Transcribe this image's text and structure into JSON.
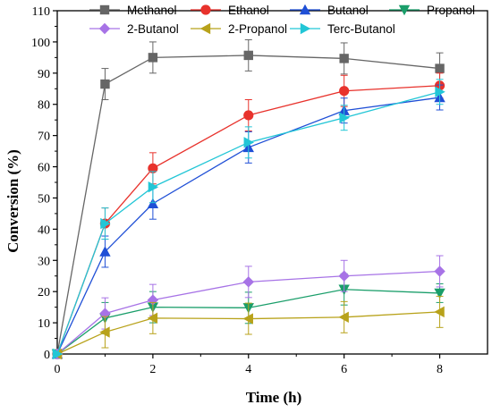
{
  "chart_data": {
    "type": "line",
    "xlabel": "Time (h)",
    "ylabel": "Conversion (%)",
    "xlim": [
      0,
      9
    ],
    "ylim": [
      0,
      110
    ],
    "xticks": [
      0,
      2,
      4,
      6,
      8
    ],
    "yticks": [
      0,
      10,
      20,
      30,
      40,
      50,
      60,
      70,
      80,
      90,
      100,
      110
    ],
    "grid": false,
    "legend_position": "top",
    "x": [
      0,
      1,
      2,
      4,
      6,
      8
    ],
    "series": [
      {
        "name": "Methanol",
        "marker": "square",
        "color": "#666666",
        "values": [
          0,
          86.5,
          95,
          95.7,
          94.7,
          91.5
        ],
        "errors": [
          0,
          5,
          5,
          5,
          5,
          5
        ]
      },
      {
        "name": "Ethanol",
        "marker": "circle",
        "color": "#e8322c",
        "values": [
          0,
          41.8,
          59.5,
          76.5,
          84.3,
          86
        ],
        "errors": [
          0,
          5,
          5,
          5,
          5,
          4
        ]
      },
      {
        "name": "Butanol",
        "marker": "triangle-up",
        "color": "#1f4fd6",
        "values": [
          0,
          32.8,
          48.2,
          66.2,
          78,
          82.2
        ],
        "errors": [
          0,
          5,
          5,
          5,
          4,
          4
        ]
      },
      {
        "name": "Propanol",
        "marker": "triangle-down",
        "color": "#1a9e6a",
        "values": [
          0,
          11.5,
          15,
          14.8,
          20.7,
          19.5
        ],
        "errors": [
          0,
          5,
          5,
          5,
          5,
          3
        ]
      },
      {
        "name": "2-Butanol",
        "marker": "diamond",
        "color": "#a773e6",
        "values": [
          0,
          13,
          17.3,
          23.1,
          25,
          26.5
        ],
        "errors": [
          0,
          5,
          5,
          5,
          5,
          5
        ]
      },
      {
        "name": "2-Propanol",
        "marker": "triangle-left",
        "color": "#b8a21a",
        "values": [
          0,
          7,
          11.5,
          11.3,
          11.8,
          13.5
        ],
        "errors": [
          0,
          5,
          5,
          5,
          5,
          5
        ]
      },
      {
        "name": "Terc-Butanol",
        "marker": "triangle-right",
        "color": "#22c6d6",
        "values": [
          0,
          41.8,
          53.5,
          67.8,
          75.7,
          84
        ],
        "errors": [
          0,
          5,
          5,
          5,
          4,
          4
        ]
      }
    ]
  }
}
